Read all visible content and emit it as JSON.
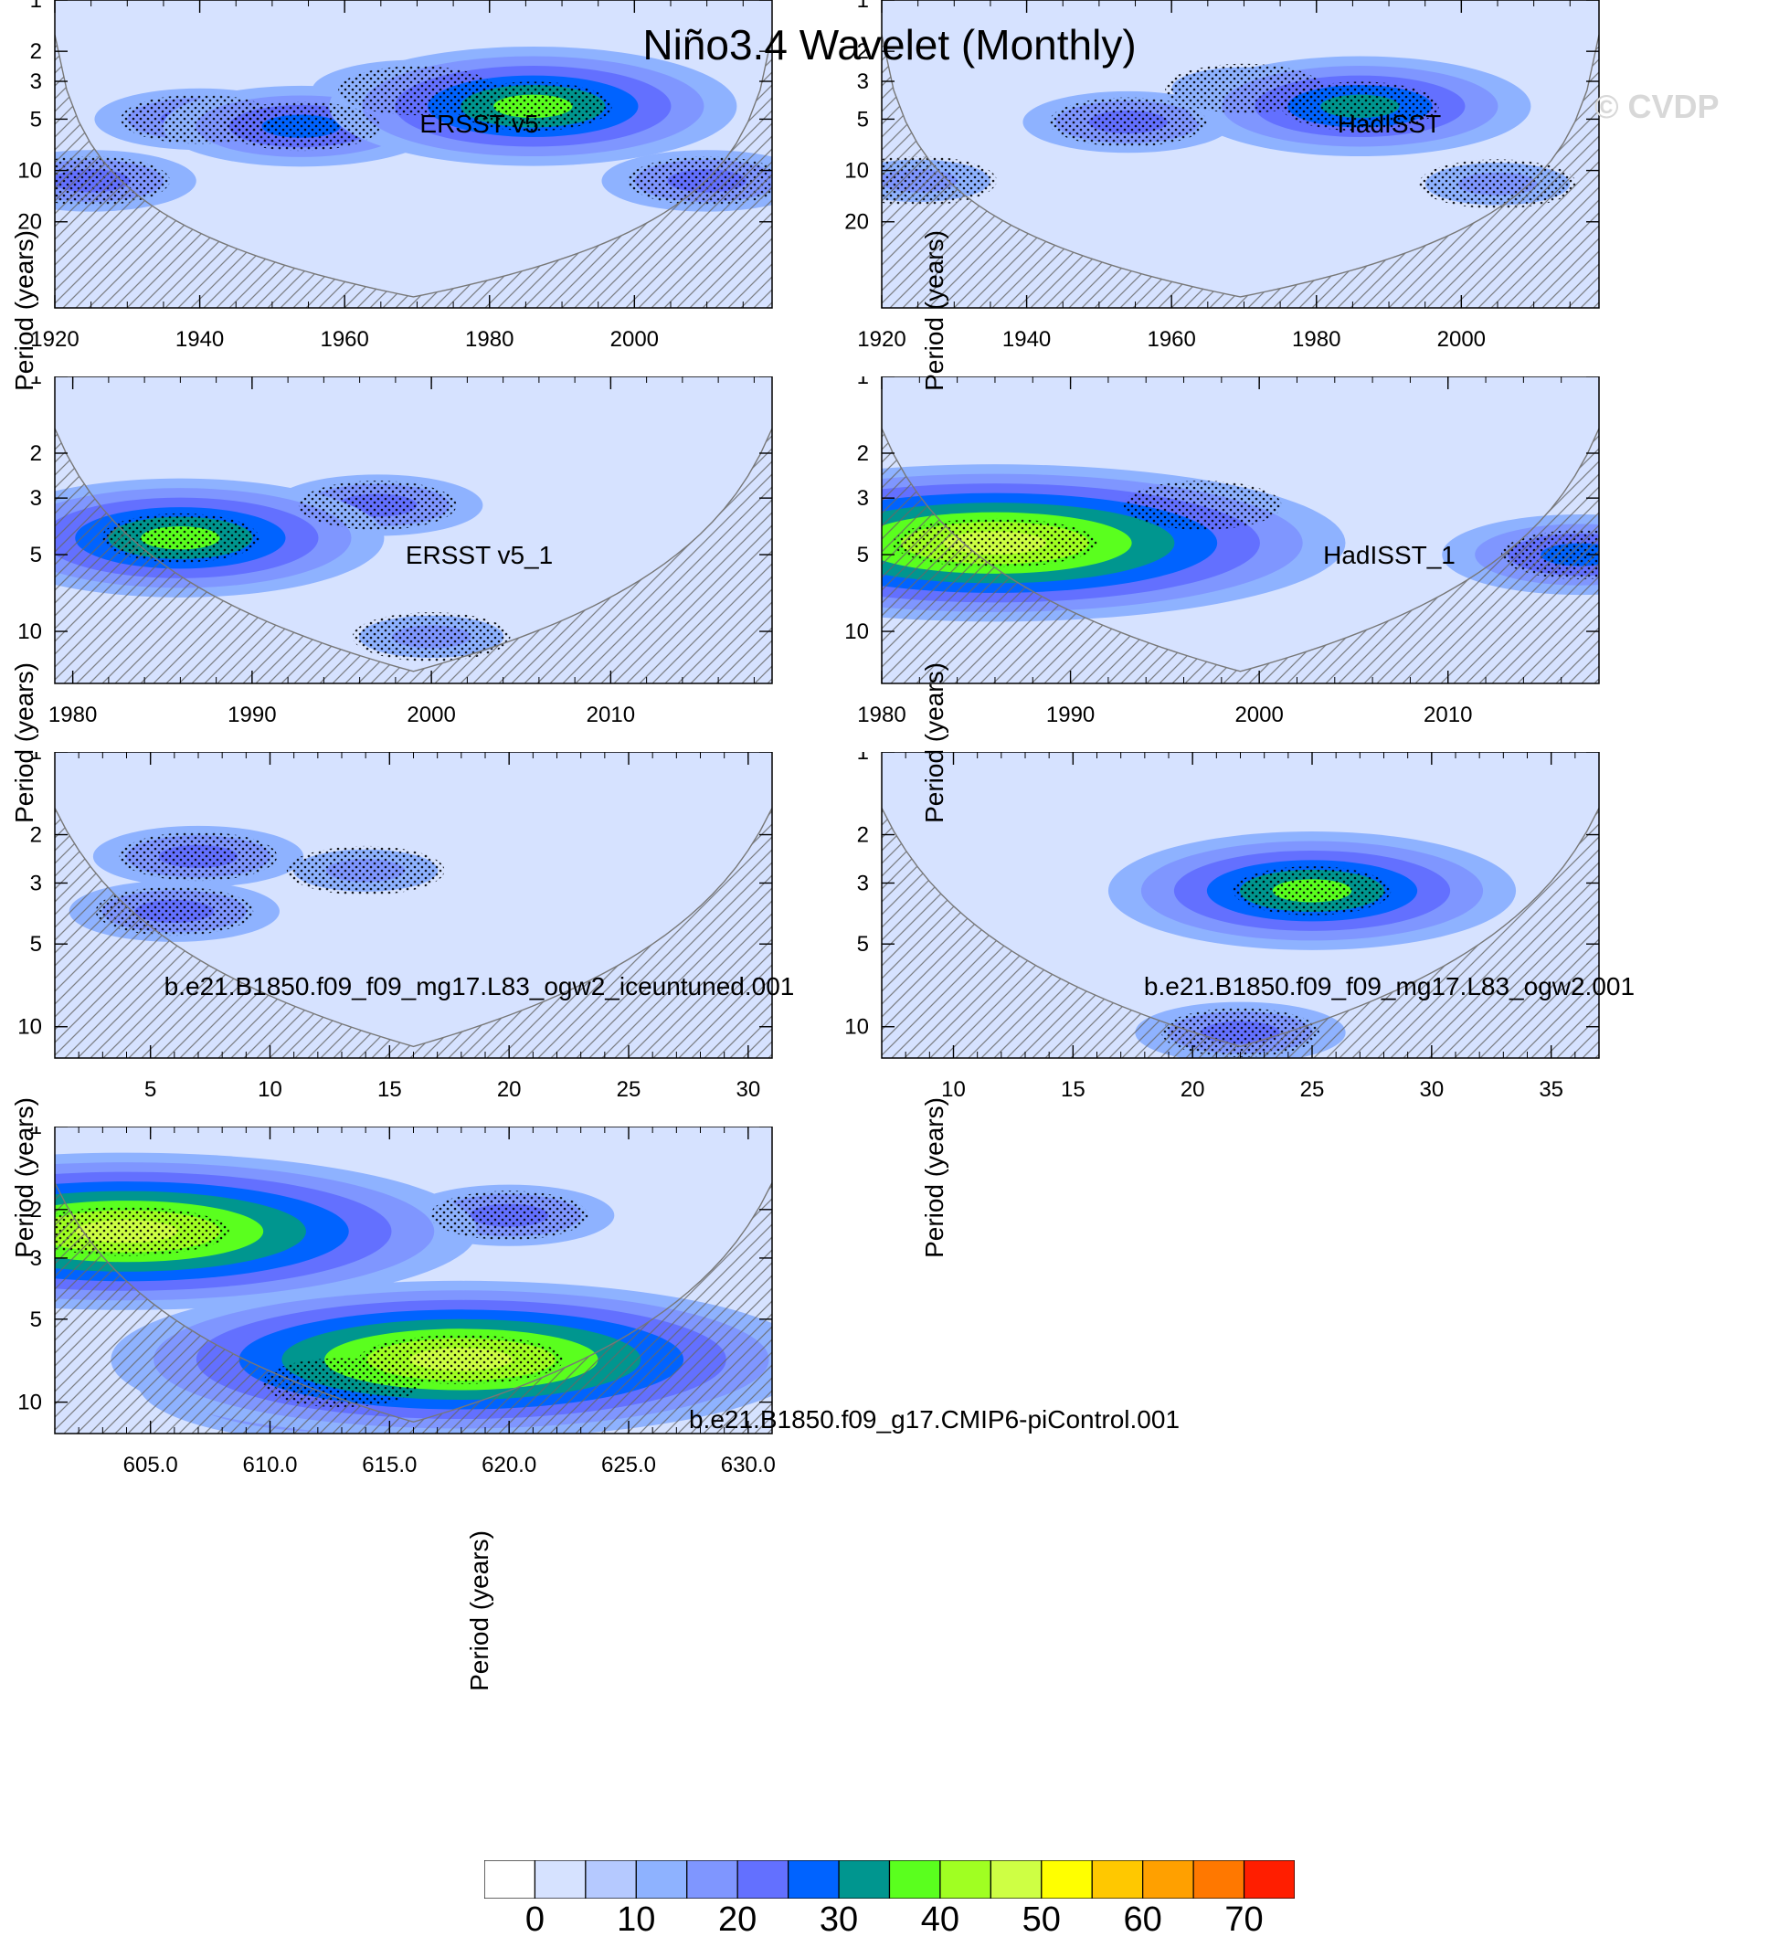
{
  "title": "Niño3.4 Wavelet (Monthly)",
  "watermark": "© CVDP",
  "colors": {
    "plot_bg": "#d6e2ff",
    "levels": [
      "#ffffff",
      "#d6e2ff",
      "#b5c9ff",
      "#8eb2ff",
      "#7f96ff",
      "#6370ff",
      "#0063ff",
      "#00968f",
      "#5aff1e",
      "#a0ff22",
      "#ceff44",
      "#ffff00",
      "#ffc800",
      "#ffa000",
      "#ff7800",
      "#ff1e00"
    ],
    "hatch": "#666666",
    "dots": "#000000"
  },
  "colorbar": {
    "labels": [
      "0",
      "10",
      "20",
      "30",
      "40",
      "50",
      "60",
      "70"
    ],
    "levels": [
      0,
      5,
      10,
      15,
      20,
      25,
      30,
      35,
      40,
      45,
      50,
      55,
      60,
      65,
      70
    ]
  },
  "chart_data": [
    {
      "type": "heatmap",
      "title": "ERSST v5",
      "ylabel": "Period (years)",
      "xticks": [
        "1920",
        "1940",
        "1960",
        "1980",
        "2000"
      ],
      "xtick_values": [
        1920,
        1940,
        1960,
        1980,
        2000
      ],
      "xlim": [
        1920,
        2019
      ],
      "yticks": [
        "1",
        "2",
        "3",
        "5",
        "10",
        "20"
      ],
      "ytick_values": [
        1,
        2,
        3,
        5,
        10,
        20
      ],
      "ylim": [
        1,
        64
      ],
      "features": [
        {
          "x": 1986,
          "period": 4.2,
          "power": 35
        },
        {
          "x": 1954,
          "period": 5.5,
          "power": 25
        },
        {
          "x": 1940,
          "period": 5.0,
          "power": 20
        },
        {
          "x": 1970,
          "period": 3.4,
          "power": 20
        },
        {
          "x": 1925,
          "period": 11.5,
          "power": 20
        },
        {
          "x": 2010,
          "period": 11.5,
          "power": 20
        }
      ]
    },
    {
      "type": "heatmap",
      "title": "HadISST",
      "ylabel": "Period (years)",
      "xticks": [
        "1920",
        "1940",
        "1960",
        "1980",
        "2000"
      ],
      "xtick_values": [
        1920,
        1940,
        1960,
        1980,
        2000
      ],
      "xlim": [
        1920,
        2019
      ],
      "yticks": [
        "1",
        "2",
        "3",
        "5",
        "10",
        "20"
      ],
      "ytick_values": [
        1,
        2,
        3,
        5,
        10,
        20
      ],
      "ylim": [
        1,
        64
      ],
      "features": [
        {
          "x": 1986,
          "period": 4.2,
          "power": 30
        },
        {
          "x": 1954,
          "period": 5.2,
          "power": 20
        },
        {
          "x": 1970,
          "period": 3.3,
          "power": 15
        },
        {
          "x": 1925,
          "period": 11.5,
          "power": 15
        },
        {
          "x": 2005,
          "period": 12.0,
          "power": 15
        }
      ]
    },
    {
      "type": "heatmap",
      "title": "ERSST v5_1",
      "ylabel": "Period (years)",
      "xticks": [
        "1980",
        "1990",
        "2000",
        "2010"
      ],
      "xtick_values": [
        1980,
        1990,
        2000,
        2010
      ],
      "xlim": [
        1979,
        2019
      ],
      "yticks": [
        "1",
        "2",
        "3",
        "5",
        "10"
      ],
      "ytick_values": [
        1,
        2,
        3,
        5,
        10
      ],
      "ylim": [
        1,
        16
      ],
      "features": [
        {
          "x": 1986,
          "period": 4.3,
          "power": 35
        },
        {
          "x": 1997,
          "period": 3.2,
          "power": 20
        },
        {
          "x": 2000,
          "period": 10.5,
          "power": 15
        }
      ]
    },
    {
      "type": "heatmap",
      "title": "HadISST_1",
      "ylabel": "Period (years)",
      "xticks": [
        "1980",
        "1990",
        "2000",
        "2010"
      ],
      "xtick_values": [
        1980,
        1990,
        2000,
        2010
      ],
      "xlim": [
        1980,
        2018
      ],
      "yticks": [
        "1",
        "2",
        "3",
        "5",
        "10"
      ],
      "ytick_values": [
        1,
        2,
        3,
        5,
        10
      ],
      "ylim": [
        1,
        16
      ],
      "features": [
        {
          "x": 1986,
          "period": 4.5,
          "power": 45
        },
        {
          "x": 1997,
          "period": 3.2,
          "power": 15
        },
        {
          "x": 2017,
          "period": 5.0,
          "power": 25
        }
      ]
    },
    {
      "type": "heatmap",
      "title": "b.e21.B1850.f09_f09_mg17.L83_ogw2_iceuntuned.001",
      "ylabel": "Period (years)",
      "xticks": [
        "5",
        "10",
        "15",
        "20",
        "25",
        "30"
      ],
      "xtick_values": [
        5,
        10,
        15,
        20,
        25,
        30
      ],
      "xlim": [
        1,
        31
      ],
      "yticks": [
        "1",
        "2",
        "3",
        "5",
        "10"
      ],
      "ytick_values": [
        1,
        2,
        3,
        5,
        10
      ],
      "ylim": [
        1,
        13
      ],
      "features": [
        {
          "x": 6,
          "period": 3.8,
          "power": 20
        },
        {
          "x": 7,
          "period": 2.4,
          "power": 20
        },
        {
          "x": 14,
          "period": 2.7,
          "power": 15
        }
      ]
    },
    {
      "type": "heatmap",
      "title": "b.e21.B1850.f09_f09_mg17.L83_ogw2.001",
      "ylabel": "Period (years)",
      "xticks": [
        "10",
        "15",
        "20",
        "25",
        "30",
        "35"
      ],
      "xtick_values": [
        10,
        15,
        20,
        25,
        30,
        35
      ],
      "xlim": [
        7,
        37
      ],
      "yticks": [
        "1",
        "2",
        "3",
        "5",
        "10"
      ],
      "ytick_values": [
        1,
        2,
        3,
        5,
        10
      ],
      "ylim": [
        1,
        13
      ],
      "features": [
        {
          "x": 25,
          "period": 3.2,
          "power": 35
        },
        {
          "x": 22,
          "period": 10.5,
          "power": 20
        }
      ]
    },
    {
      "type": "heatmap",
      "title": "b.e21.B1850.f09_g17.CMIP6-piControl.001",
      "ylabel": "Period (years)",
      "xticks": [
        "605.0",
        "610.0",
        "615.0",
        "620.0",
        "625.0",
        "630.0"
      ],
      "xtick_values": [
        605,
        610,
        615,
        620,
        625,
        630
      ],
      "xlim": [
        601,
        631
      ],
      "yticks": [
        "1",
        "2",
        "3",
        "5",
        "10"
      ],
      "ytick_values": [
        1,
        2,
        3,
        5,
        10
      ],
      "ylim": [
        1,
        13
      ],
      "features": [
        {
          "x": 604,
          "period": 2.4,
          "power": 45
        },
        {
          "x": 618,
          "period": 7.0,
          "power": 45
        },
        {
          "x": 613,
          "period": 8.5,
          "power": 35
        },
        {
          "x": 620,
          "period": 2.1,
          "power": 20
        }
      ]
    }
  ]
}
